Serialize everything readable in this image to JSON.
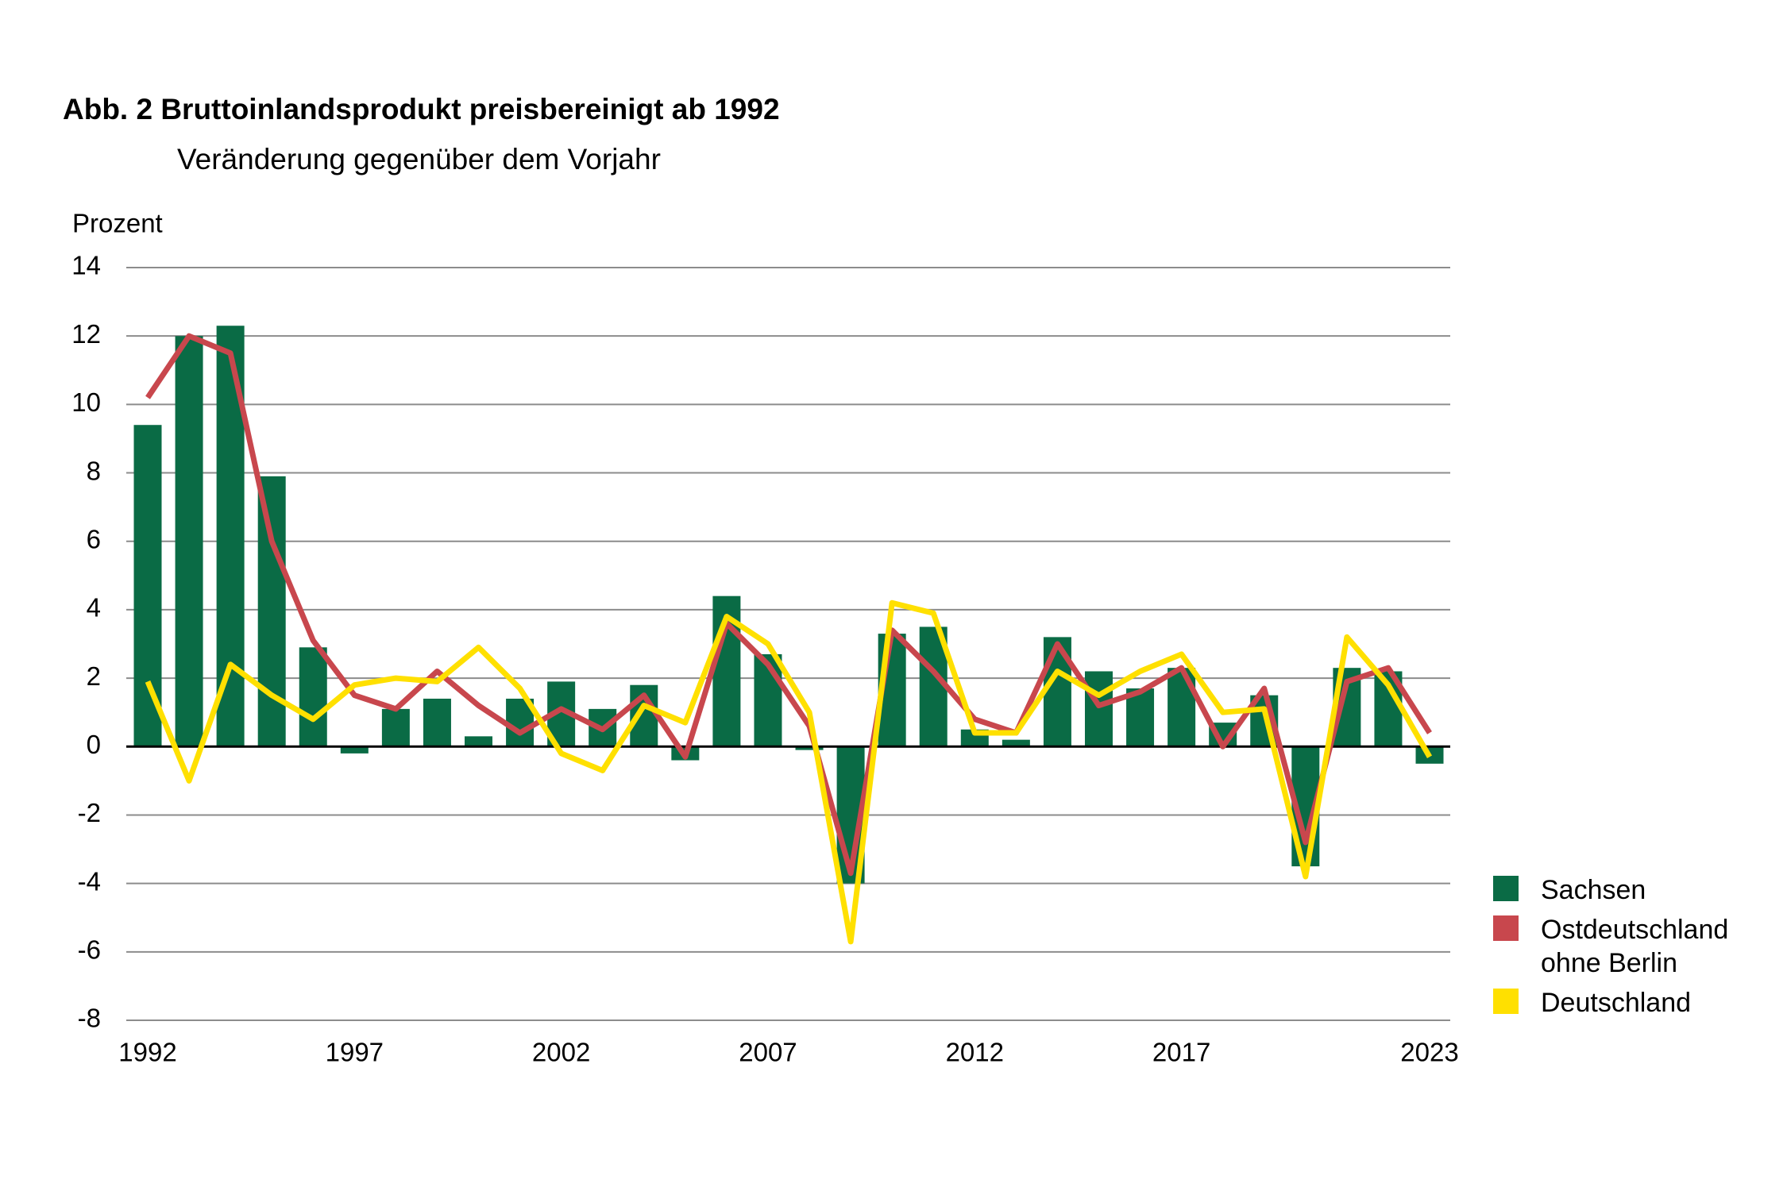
{
  "chart_data": {
    "type": "bar-line",
    "title": "Abb. 2 Bruttoinlandsprodukt preisbereinigt ab 1992",
    "subtitle": "Veränderung gegenüber dem Vorjahr",
    "y_label": "Prozent",
    "x": [
      1992,
      1993,
      1994,
      1995,
      1996,
      1997,
      1998,
      1999,
      2000,
      2001,
      2002,
      2003,
      2004,
      2005,
      2006,
      2007,
      2008,
      2009,
      2010,
      2011,
      2012,
      2013,
      2014,
      2015,
      2016,
      2017,
      2018,
      2019,
      2020,
      2021,
      2022,
      2023
    ],
    "xlim": [
      1992,
      2023
    ],
    "xticks": [
      1992,
      1997,
      2002,
      2007,
      2012,
      2017,
      2023
    ],
    "ylim": [
      -8,
      14
    ],
    "yticks": [
      -8,
      -6,
      -4,
      -2,
      0,
      2,
      4,
      6,
      8,
      10,
      12,
      14
    ],
    "grid": true,
    "legend": "right",
    "series": [
      {
        "name": "Sachsen",
        "color": "#0a6b45",
        "kind": "bar",
        "values": [
          9.4,
          12.0,
          12.3,
          7.9,
          2.9,
          -0.2,
          1.1,
          1.4,
          0.3,
          1.4,
          1.9,
          1.1,
          1.8,
          -0.4,
          4.4,
          2.7,
          -0.1,
          -4.0,
          3.3,
          3.5,
          0.5,
          0.2,
          3.2,
          2.2,
          1.7,
          2.3,
          0.7,
          1.5,
          -3.5,
          2.3,
          2.2,
          -0.5
        ]
      },
      {
        "name": "Ostdeutschland ohne Berlin",
        "color": "#c8474d",
        "kind": "line",
        "values": [
          10.2,
          12.0,
          11.5,
          6.0,
          3.1,
          1.5,
          1.1,
          2.2,
          1.2,
          0.4,
          1.1,
          0.5,
          1.5,
          -0.3,
          3.6,
          2.4,
          0.6,
          -3.7,
          3.4,
          2.2,
          0.8,
          0.4,
          3.0,
          1.2,
          1.6,
          2.3,
          0.0,
          1.7,
          -2.8,
          1.9,
          2.3,
          0.4
        ]
      },
      {
        "name": "Deutschland",
        "color": "#ffe000",
        "kind": "line",
        "values": [
          1.9,
          -1.0,
          2.4,
          1.5,
          0.8,
          1.8,
          2.0,
          1.9,
          2.9,
          1.7,
          -0.2,
          -0.7,
          1.2,
          0.7,
          3.8,
          3.0,
          1.0,
          -5.7,
          4.2,
          3.9,
          0.4,
          0.4,
          2.2,
          1.5,
          2.2,
          2.7,
          1.0,
          1.1,
          -3.8,
          3.2,
          1.8,
          -0.3
        ]
      }
    ]
  }
}
